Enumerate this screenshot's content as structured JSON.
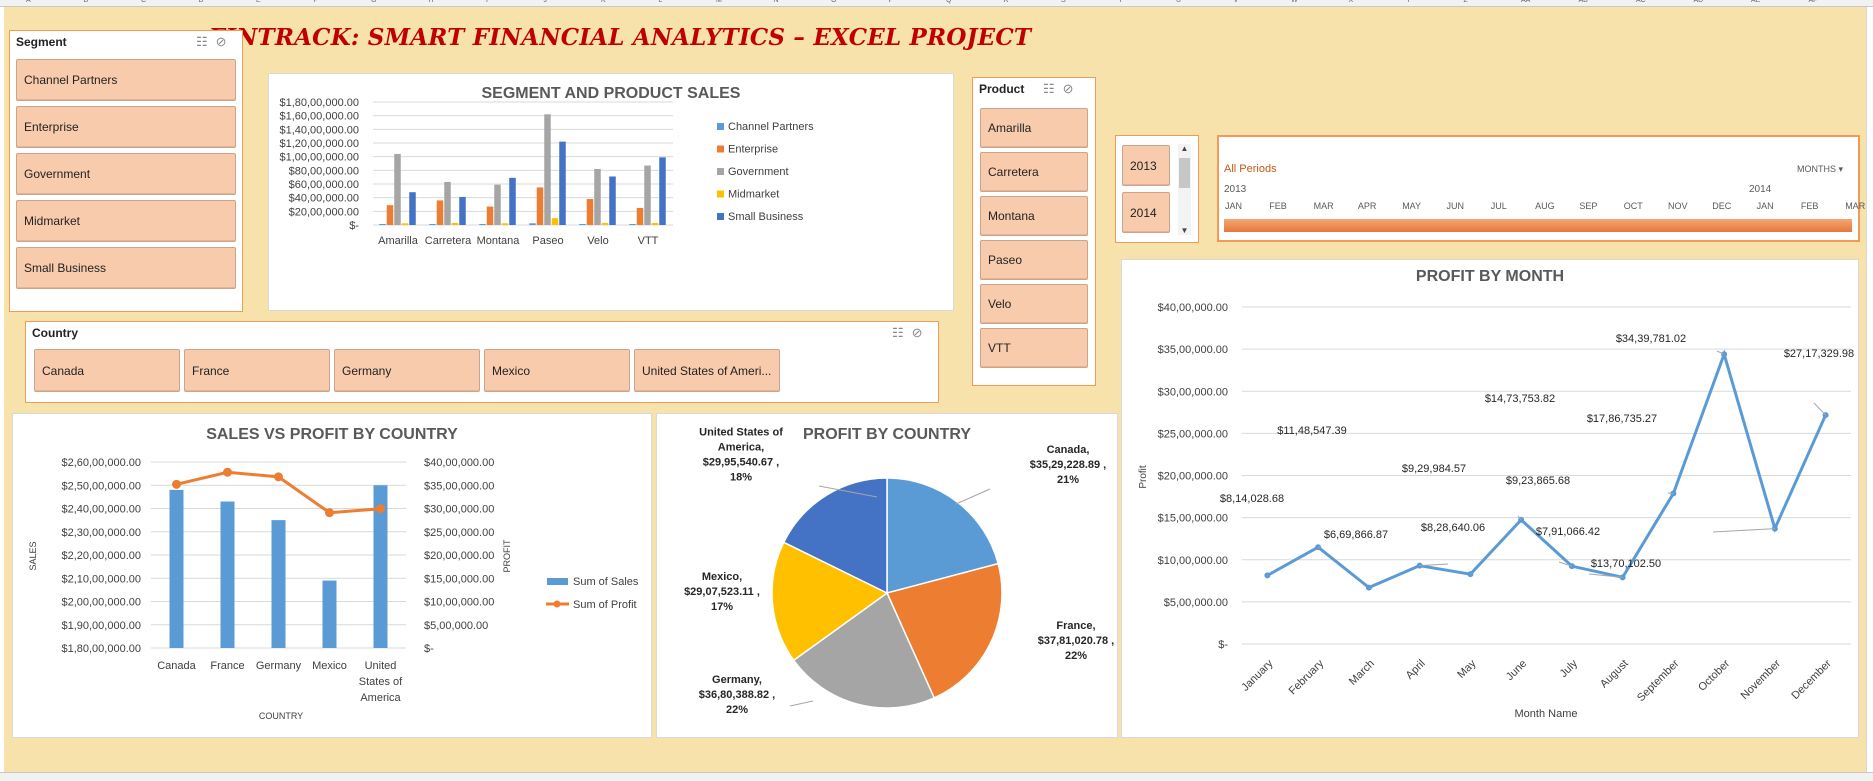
{
  "title": "FINTRACK: SMART FINANCIAL ANALYTICS – EXCEL PROJECT",
  "column_headers": [
    "A",
    "B",
    "C",
    "D",
    "E",
    "F",
    "G",
    "H",
    "I",
    "J",
    "K",
    "L",
    "M",
    "N",
    "O",
    "P",
    "Q",
    "R",
    "S",
    "T",
    "U",
    "V",
    "W",
    "X",
    "Y",
    "Z",
    "AA",
    "AB",
    "AC",
    "AD",
    "AE",
    "AF"
  ],
  "segment_slicer": {
    "header": "Segment",
    "items": [
      "Channel Partners",
      "Enterprise",
      "Government",
      "Midmarket",
      "Small Business"
    ]
  },
  "product_slicer": {
    "header": "Product",
    "items": [
      "Amarilla",
      "Carretera",
      "Montana",
      "Paseo",
      "Velo",
      "VTT"
    ]
  },
  "country_slicer": {
    "header": "Country",
    "items": [
      "Canada",
      "France",
      "Germany",
      "Mexico",
      "United States of Ameri..."
    ]
  },
  "year_slicer": {
    "items": [
      "2013",
      "2014"
    ]
  },
  "timeline": {
    "label": "All Periods",
    "level": "MONTHS",
    "year1": "2013",
    "year2": "2014",
    "months": [
      "JAN",
      "FEB",
      "MAR",
      "APR",
      "MAY",
      "JUN",
      "JUL",
      "AUG",
      "SEP",
      "OCT",
      "NOV",
      "DEC",
      "JAN",
      "FEB",
      "MAR"
    ]
  },
  "colors": {
    "channel": "#5b9bd5",
    "enterprise": "#ed7d31",
    "government": "#a5a5a5",
    "midmarket": "#ffc000",
    "small": "#4472c4",
    "slicer_fill": "#f8cbad",
    "title": "#c00000"
  },
  "chart_data": [
    {
      "type": "bar",
      "title": "SEGMENT AND PRODUCT SALES",
      "categories": [
        "Amarilla",
        "Carretera",
        "Montana",
        "Paseo",
        "Velo",
        "VTT"
      ],
      "series": [
        {
          "name": "Channel Partners",
          "values": [
            1500000,
            1500000,
            1500000,
            2500000,
            1500000,
            1500000
          ]
        },
        {
          "name": "Enterprise",
          "values": [
            29000000,
            36000000,
            27000000,
            55000000,
            38000000,
            25000000
          ]
        },
        {
          "name": "Government",
          "values": [
            104000000,
            63000000,
            59000000,
            162000000,
            82000000,
            87000000
          ]
        },
        {
          "name": "Midmarket",
          "values": [
            2500000,
            3000000,
            2500000,
            10000000,
            3000000,
            3000000
          ]
        },
        {
          "name": "Small Business",
          "values": [
            48000000,
            41000000,
            69000000,
            122000000,
            71000000,
            99000000
          ]
        }
      ],
      "y_ticks": [
        "$-",
        "$20,00,000.00",
        "$40,00,000.00",
        "$60,00,000.00",
        "$80,00,000.00",
        "$1,00,00,000.00",
        "$1,20,00,000.00",
        "$1,40,00,000.00",
        "$1,60,00,000.00",
        "$1,80,00,000.00"
      ],
      "ylim": [
        0,
        180000000
      ],
      "legend": "right"
    },
    {
      "type": "bar",
      "title": "SALES VS PROFIT BY COUNTRY",
      "categories": [
        "Canada",
        "France",
        "Germany",
        "Mexico",
        "United States of America"
      ],
      "category_lines": [
        [
          "Canada"
        ],
        [
          "France"
        ],
        [
          "Germany"
        ],
        [
          "Mexico"
        ],
        [
          "United",
          "States of",
          "America"
        ]
      ],
      "series": [
        {
          "name": "Sum of  Sales",
          "type": "bar",
          "values": [
            248000000,
            243000000,
            235000000,
            209000000,
            250000000
          ]
        },
        {
          "name": "Sum of Profit",
          "type": "line",
          "values": [
            3520000,
            3780000,
            3680000,
            2910000,
            2995000
          ]
        }
      ],
      "y_ticks": [
        "$1,80,00,000.00",
        "$1,90,00,000.00",
        "$2,00,00,000.00",
        "$2,10,00,000.00",
        "$2,20,00,000.00",
        "$2,30,00,000.00",
        "$2,40,00,000.00",
        "$2,50,00,000.00",
        "$2,60,00,000.00"
      ],
      "ylim": [
        180000000,
        260000000
      ],
      "y2_ticks": [
        "$-",
        "$5,00,000.00",
        "$10,00,000.00",
        "$15,00,000.00",
        "$20,00,000.00",
        "$25,00,000.00",
        "$30,00,000.00",
        "$35,00,000.00",
        "$40,00,000.00"
      ],
      "y2lim": [
        0,
        4000000
      ],
      "xlabel": "COUNTRY",
      "ylabel": "SALES",
      "y2label": "PROFIT",
      "legend": "right"
    },
    {
      "type": "pie",
      "title": "PROFIT BY COUNTRY",
      "slices": [
        {
          "name": "Canada",
          "value": 3529228.89,
          "pct": "21%",
          "label_lines": [
            "Canada,",
            "$35,29,228.89 ,",
            "21%"
          ],
          "color": "#5b9bd5"
        },
        {
          "name": "France",
          "value": 3781020.78,
          "pct": "22%",
          "label_lines": [
            "France,",
            "$37,81,020.78 ,",
            "22%"
          ],
          "color": "#ed7d31"
        },
        {
          "name": "Germany",
          "value": 3680388.82,
          "pct": "22%",
          "label_lines": [
            "Germany,",
            "$36,80,388.82 ,",
            "22%"
          ],
          "color": "#a5a5a5"
        },
        {
          "name": "Mexico",
          "value": 2907523.11,
          "pct": "17%",
          "label_lines": [
            "Mexico,",
            "$29,07,523.11 ,",
            "17%"
          ],
          "color": "#ffc000"
        },
        {
          "name": "United States of America",
          "value": 2995540.67,
          "pct": "18%",
          "label_lines": [
            "United States of",
            "America,",
            "$29,95,540.67 ,",
            "18%"
          ],
          "color": "#4472c4"
        }
      ]
    },
    {
      "type": "line",
      "title": "PROFIT BY MONTH",
      "categories": [
        "January",
        "February",
        "March",
        "April",
        "May",
        "June",
        "July",
        "August",
        "September",
        "October",
        "November",
        "December"
      ],
      "values": [
        814028.68,
        1148547.39,
        669866.87,
        929984.57,
        828640.06,
        1473753.82,
        923865.68,
        791066.42,
        1786735.27,
        3439781.02,
        1370102.5,
        2717329.98
      ],
      "data_labels": [
        "$8,14,028.68",
        "$11,48,547.39",
        "$6,69,866.87",
        "$9,29,984.57",
        "$8,28,640.06",
        "$14,73,753.82",
        "$9,23,865.68",
        "$7,91,066.42",
        "$17,86,735.27",
        "$34,39,781.02",
        "$13,70,102.50",
        "$27,17,329.98"
      ],
      "y_ticks": [
        "$-",
        "$5,00,000.00",
        "$10,00,000.00",
        "$15,00,000.00",
        "$20,00,000.00",
        "$25,00,000.00",
        "$30,00,000.00",
        "$35,00,000.00",
        "$40,00,000.00"
      ],
      "ylim": [
        0,
        4000000
      ],
      "xlabel": "Month Name",
      "ylabel": "Profit",
      "grid": true
    }
  ]
}
